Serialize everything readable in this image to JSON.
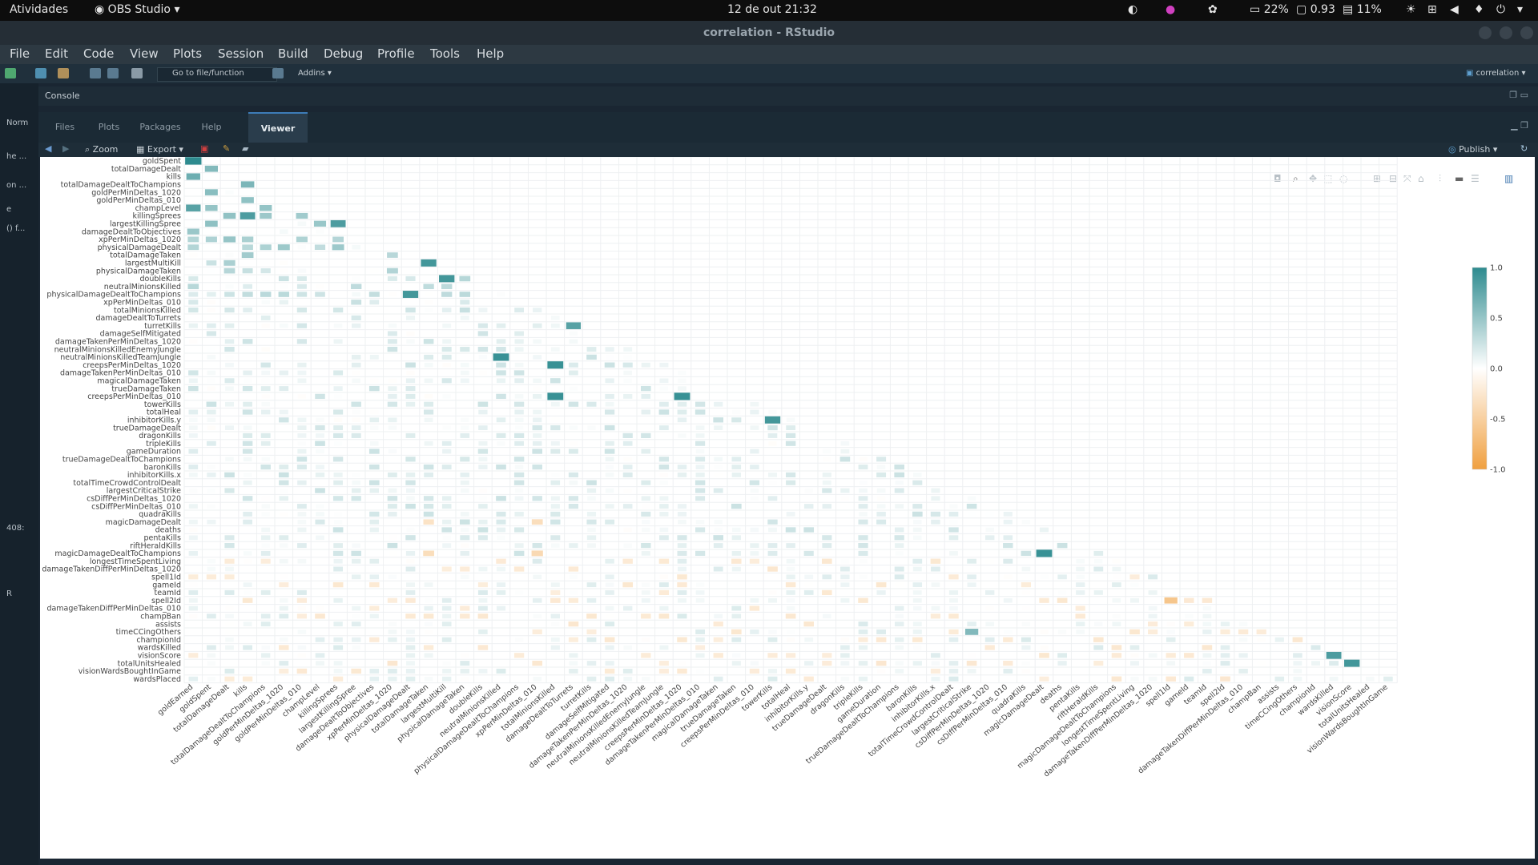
{
  "system_bar": {
    "activities": "Atividades",
    "app_menu": "OBS Studio",
    "clock": "12 de out  21:32",
    "battery": "22%",
    "cpu": "0.93",
    "disk": "11%"
  },
  "window": {
    "title": "correlation - RStudio"
  },
  "menu": [
    "File",
    "Edit",
    "Code",
    "View",
    "Plots",
    "Session",
    "Build",
    "Debug",
    "Profile",
    "Tools",
    "Help"
  ],
  "toolbar": {
    "goto_placeholder": "Go to file/function",
    "addins": "Addins",
    "project": "correlation"
  },
  "console": {
    "label": "Console"
  },
  "left_strip": {
    "line1": "Norm",
    "line2": "he ...",
    "line3": "on ...",
    "line4": "e",
    "line5": "() f...",
    "line6": "408:",
    "line7": "R"
  },
  "tabs": [
    {
      "label": "Files"
    },
    {
      "label": "Plots"
    },
    {
      "label": "Packages"
    },
    {
      "label": "Help"
    },
    {
      "label": "Viewer",
      "active": true
    }
  ],
  "viewer_toolbar": {
    "zoom": "Zoom",
    "export": "Export",
    "publish": "Publish"
  },
  "colors": {
    "positive": "#2e8b8f",
    "negative": "#f0a040",
    "neutral": "#ffffff"
  },
  "chart_data": {
    "type": "heatmap",
    "title": "",
    "xlabel": "",
    "ylabel": "",
    "x_labels": [
      "goldEarned",
      "goldSpent",
      "totalDamageDealt",
      "kills",
      "totalDamageDealtToChampions",
      "goldPerMinDeltas_1020",
      "goldPerMinDeltas_010",
      "champLevel",
      "killingSprees",
      "largestKillingSpree",
      "damageDealtToObjectives",
      "xpPerMinDeltas_1020",
      "physicalDamageDealt",
      "totalDamageTaken",
      "largestMultiKill",
      "physicalDamageTaken",
      "doubleKills",
      "neutralMinionsKilled",
      "physicalDamageDealtToChampions",
      "xpPerMinDeltas_010",
      "totalMinionsKilled",
      "damageDealtToTurrets",
      "turretKills",
      "damageSelfMitigated",
      "damageTakenPerMinDeltas_1020",
      "neutralMinionsKilledEnemyJungle",
      "neutralMinionsKilledTeamJungle",
      "creepsPerMinDeltas_1020",
      "damageTakenPerMinDeltas_010",
      "magicalDamageTaken",
      "trueDamageTaken",
      "creepsPerMinDeltas_010",
      "towerKills",
      "totalHeal",
      "inhibitorKills.y",
      "trueDamageDealt",
      "dragonKills",
      "tripleKills",
      "gameDuration",
      "trueDamageDealtToChampions",
      "baronKills",
      "inhibitorKills.x",
      "totalTimeCrowdControlDealt",
      "largestCriticalStrike",
      "csDiffPerMinDeltas_1020",
      "csDiffPerMinDeltas_010",
      "quadraKills",
      "magicDamageDealt",
      "deaths",
      "pentaKills",
      "riftHeraldKills",
      "magicDamageDealtToChampions",
      "longestTimeSpentLiving",
      "damageTakenDiffPerMinDeltas_1020",
      "spell1Id",
      "gameId",
      "teamId",
      "spell2Id",
      "damageTakenDiffPerMinDeltas_010",
      "champBan",
      "assists",
      "timeCCingOthers",
      "championId",
      "wardsKilled",
      "visionScore",
      "totalUnitsHealed",
      "visionWardsBoughtInGame"
    ],
    "y_labels": [
      "goldSpent",
      "totalDamageDealt",
      "kills",
      "totalDamageDealtToChampions",
      "goldPerMinDeltas_1020",
      "goldPerMinDeltas_010",
      "champLevel",
      "killingSprees",
      "largestKillingSpree",
      "damageDealtToObjectives",
      "xpPerMinDeltas_1020",
      "physicalDamageDealt",
      "totalDamageTaken",
      "largestMultiKill",
      "physicalDamageTaken",
      "doubleKills",
      "neutralMinionsKilled",
      "physicalDamageDealtToChampions",
      "xpPerMinDeltas_010",
      "totalMinionsKilled",
      "damageDealtToTurrets",
      "turretKills",
      "damageSelfMitigated",
      "damageTakenPerMinDeltas_1020",
      "neutralMinionsKilledEnemyJungle",
      "neutralMinionsKilledTeamJungle",
      "creepsPerMinDeltas_1020",
      "damageTakenPerMinDeltas_010",
      "magicalDamageTaken",
      "trueDamageTaken",
      "creepsPerMinDeltas_010",
      "towerKills",
      "totalHeal",
      "inhibitorKills.y",
      "trueDamageDealt",
      "dragonKills",
      "tripleKills",
      "gameDuration",
      "trueDamageDealtToChampions",
      "baronKills",
      "inhibitorKills.x",
      "totalTimeCrowdControlDealt",
      "largestCriticalStrike",
      "csDiffPerMinDeltas_1020",
      "csDiffPerMinDeltas_010",
      "quadraKills",
      "magicDamageDealt",
      "deaths",
      "pentaKills",
      "riftHeraldKills",
      "magicDamageDealtToChampions",
      "longestTimeSpentLiving",
      "damageTakenDiffPerMinDeltas_1020",
      "spell1Id",
      "gameId",
      "teamId",
      "spell2Id",
      "damageTakenDiffPerMinDeltas_010",
      "champBan",
      "assists",
      "timeCCingOthers",
      "championId",
      "wardsKilled",
      "visionScore",
      "totalUnitsHealed",
      "visionWardsBoughtInGame",
      "wardsPlaced"
    ],
    "lower_triangle": true,
    "highlight_cells": [
      {
        "y": "goldSpent",
        "x": "goldEarned",
        "value": 1.0
      },
      {
        "y": "kills",
        "x": "goldEarned",
        "value": 0.7
      },
      {
        "y": "champLevel",
        "x": "goldEarned",
        "value": 0.8
      },
      {
        "y": "killingSprees",
        "x": "kills",
        "value": 0.85
      },
      {
        "y": "largestKillingSpree",
        "x": "killingSprees",
        "value": 0.85
      },
      {
        "y": "largestMultiKill",
        "x": "totalDamageTaken",
        "value": 0.9
      },
      {
        "y": "doubleKills",
        "x": "largestMultiKill",
        "value": 0.9
      },
      {
        "y": "physicalDamageDealtToChampions",
        "x": "physicalDamageDealt",
        "value": 0.9
      },
      {
        "y": "turretKills",
        "x": "damageDealtToTurrets",
        "value": 0.8
      },
      {
        "y": "neutralMinionsKilledTeamJungle",
        "x": "neutralMinionsKilled",
        "value": 0.95
      },
      {
        "y": "creepsPerMinDeltas_1020",
        "x": "totalMinionsKilled",
        "value": 0.95
      },
      {
        "y": "creepsPerMinDeltas_010",
        "x": "totalMinionsKilled",
        "value": 0.95
      },
      {
        "y": "creepsPerMinDeltas_010",
        "x": "creepsPerMinDeltas_1020",
        "value": 0.95
      },
      {
        "y": "inhibitorKills.y",
        "x": "towerKills",
        "value": 0.9
      },
      {
        "y": "magicDamageDealtToChampions",
        "x": "magicDamageDealt",
        "value": 0.95
      },
      {
        "y": "spell2Id",
        "x": "spell1Id",
        "value": -0.6
      },
      {
        "y": "visionScore",
        "x": "wardsKilled",
        "value": 0.85
      },
      {
        "y": "totalUnitsHealed",
        "x": "visionScore",
        "value": 0.9
      },
      {
        "y": "magicDamageDealt",
        "x": "totalDamageTaken",
        "value": -0.3
      },
      {
        "y": "magicDamageDealt",
        "x": "xpPerMinDeltas_010",
        "value": -0.35
      },
      {
        "y": "magicDamageDealtToChampions",
        "x": "totalDamageTaken",
        "value": -0.35
      },
      {
        "y": "magicDamageDealtToChampions",
        "x": "xpPerMinDeltas_010",
        "value": -0.4
      },
      {
        "y": "timeCCingOthers",
        "x": "largestCriticalStrike",
        "value": 0.6
      },
      {
        "y": "assists",
        "x": "timeCCingOthers",
        "value": 0.3
      }
    ],
    "legend": {
      "ticks": [
        "1.0",
        "0.5",
        "0.0",
        "-0.5",
        "-1.0"
      ],
      "range": [
        -1,
        1
      ],
      "position": "right"
    }
  }
}
